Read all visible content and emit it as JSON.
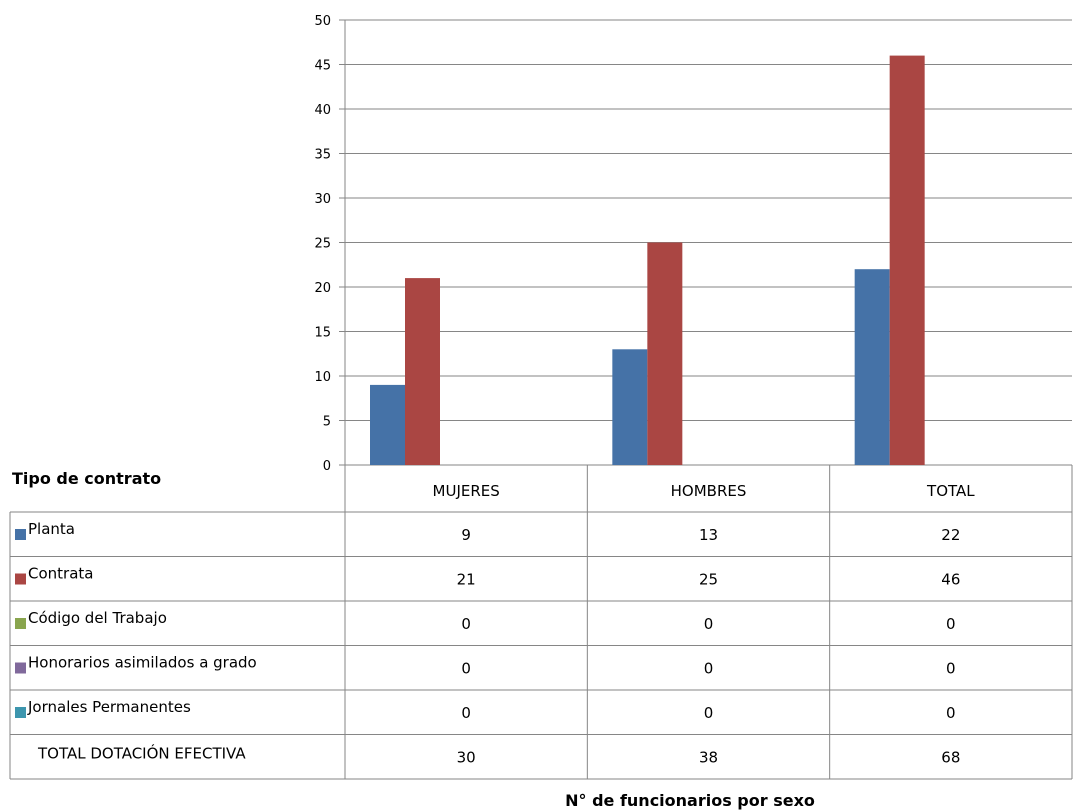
{
  "chart_data": {
    "type": "bar",
    "categories": [
      "MUJERES",
      "HOMBRES",
      "TOTAL"
    ],
    "series": [
      {
        "name": "Planta",
        "values": [
          9,
          13,
          22
        ],
        "color": "#4572a7"
      },
      {
        "name": "Contrata",
        "values": [
          21,
          25,
          46
        ],
        "color": "#aa4643"
      },
      {
        "name": "Código del Trabajo",
        "values": [
          0,
          0,
          0
        ],
        "color": "#89a54e"
      },
      {
        "name": "Honorarios asimilados a grado",
        "values": [
          0,
          0,
          0
        ],
        "color": "#80699b"
      },
      {
        "name": "Jornales Permanentes",
        "values": [
          0,
          0,
          0
        ],
        "color": "#3d96ae"
      }
    ],
    "total_row": {
      "label": "TOTAL DOTACIÓN EFECTIVA",
      "values": [
        30,
        38,
        68
      ]
    },
    "table_header": "Tipo de contrato",
    "xlabel": "N° de funcionarios por sexo",
    "ylabel": "",
    "ylim": [
      0,
      50
    ],
    "yticks": [
      0,
      5,
      10,
      15,
      20,
      25,
      30,
      35,
      40,
      45,
      50
    ],
    "grid": true,
    "legend": "data-table"
  }
}
